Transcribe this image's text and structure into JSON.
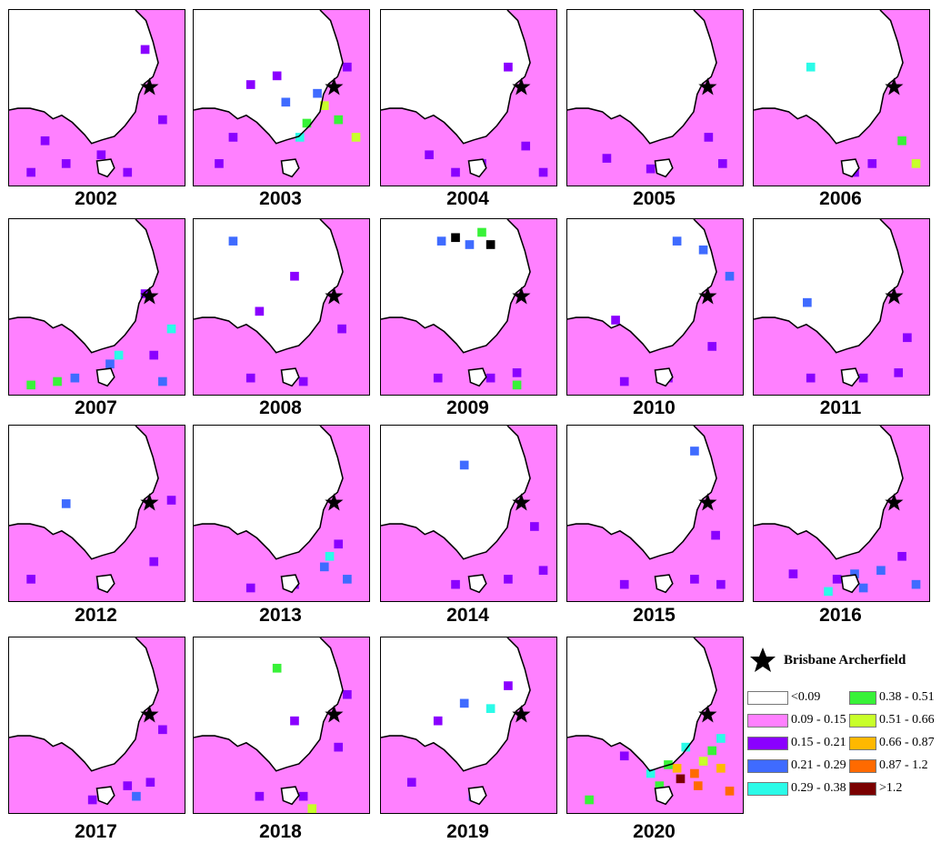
{
  "panels": [
    {
      "year": "2002",
      "dots": [
        [
          0.18,
          0.72,
          "#8a00ff"
        ],
        [
          0.3,
          0.85,
          "#8a00ff"
        ],
        [
          0.5,
          0.8,
          "#8a00ff"
        ],
        [
          0.75,
          0.2,
          "#8a00ff"
        ],
        [
          0.85,
          0.6,
          "#8a00ff"
        ],
        [
          0.65,
          0.9,
          "#8a00ff"
        ],
        [
          0.1,
          0.9,
          "#8a00ff"
        ]
      ]
    },
    {
      "year": "2003",
      "dots": [
        [
          0.62,
          0.62,
          "#38f238"
        ],
        [
          0.72,
          0.52,
          "#c8ff2a"
        ],
        [
          0.8,
          0.6,
          "#38f238"
        ],
        [
          0.58,
          0.7,
          "#2bfbe8"
        ],
        [
          0.5,
          0.5,
          "#3f6bff"
        ],
        [
          0.45,
          0.35,
          "#8a00ff"
        ],
        [
          0.3,
          0.4,
          "#8a00ff"
        ],
        [
          0.2,
          0.7,
          "#8a00ff"
        ],
        [
          0.85,
          0.3,
          "#8a00ff"
        ],
        [
          0.68,
          0.45,
          "#3f6bff"
        ],
        [
          0.9,
          0.7,
          "#c8ff2a"
        ],
        [
          0.12,
          0.85,
          "#8a00ff"
        ]
      ]
    },
    {
      "year": "2004",
      "dots": [
        [
          0.25,
          0.8,
          "#8a00ff"
        ],
        [
          0.55,
          0.85,
          "#8a00ff"
        ],
        [
          0.8,
          0.75,
          "#8a00ff"
        ],
        [
          0.7,
          0.3,
          "#8a00ff"
        ],
        [
          0.4,
          0.9,
          "#8a00ff"
        ],
        [
          0.9,
          0.9,
          "#8a00ff"
        ]
      ]
    },
    {
      "year": "2005",
      "dots": [
        [
          0.2,
          0.82,
          "#8a00ff"
        ],
        [
          0.45,
          0.88,
          "#8a00ff"
        ],
        [
          0.78,
          0.7,
          "#8a00ff"
        ],
        [
          0.86,
          0.85,
          "#8a00ff"
        ]
      ]
    },
    {
      "year": "2006",
      "dots": [
        [
          0.3,
          0.3,
          "#2bfbe8"
        ],
        [
          0.65,
          0.85,
          "#8a00ff"
        ],
        [
          0.82,
          0.72,
          "#38f238"
        ],
        [
          0.9,
          0.85,
          "#c8ff2a"
        ],
        [
          0.55,
          0.9,
          "#8a00ff"
        ]
      ]
    },
    {
      "year": "2007",
      "dots": [
        [
          0.55,
          0.8,
          "#3f6bff"
        ],
        [
          0.6,
          0.75,
          "#2bfbe8"
        ],
        [
          0.1,
          0.92,
          "#38f238"
        ],
        [
          0.25,
          0.9,
          "#38f238"
        ],
        [
          0.8,
          0.75,
          "#8a00ff"
        ],
        [
          0.75,
          0.4,
          "#8a00ff"
        ],
        [
          0.35,
          0.88,
          "#3f6bff"
        ],
        [
          0.9,
          0.6,
          "#2bfbe8"
        ],
        [
          0.85,
          0.9,
          "#3f6bff"
        ]
      ]
    },
    {
      "year": "2008",
      "dots": [
        [
          0.2,
          0.1,
          "#3f6bff"
        ],
        [
          0.55,
          0.3,
          "#8a00ff"
        ],
        [
          0.35,
          0.5,
          "#8a00ff"
        ],
        [
          0.82,
          0.6,
          "#8a00ff"
        ],
        [
          0.6,
          0.9,
          "#8a00ff"
        ],
        [
          0.3,
          0.88,
          "#8a00ff"
        ]
      ]
    },
    {
      "year": "2009",
      "dots": [
        [
          0.4,
          0.08,
          "#000000"
        ],
        [
          0.48,
          0.12,
          "#3f6bff"
        ],
        [
          0.55,
          0.05,
          "#38f238"
        ],
        [
          0.6,
          0.12,
          "#000000"
        ],
        [
          0.32,
          0.1,
          "#3f6bff"
        ],
        [
          0.75,
          0.85,
          "#8a00ff"
        ],
        [
          0.6,
          0.88,
          "#8a00ff"
        ],
        [
          0.3,
          0.88,
          "#8a00ff"
        ],
        [
          0.75,
          0.92,
          "#38f238"
        ]
      ]
    },
    {
      "year": "2010",
      "dots": [
        [
          0.6,
          0.1,
          "#3f6bff"
        ],
        [
          0.75,
          0.15,
          "#3f6bff"
        ],
        [
          0.8,
          0.7,
          "#8a00ff"
        ],
        [
          0.55,
          0.88,
          "#8a00ff"
        ],
        [
          0.3,
          0.9,
          "#8a00ff"
        ],
        [
          0.9,
          0.3,
          "#3f6bff"
        ],
        [
          0.25,
          0.55,
          "#8a00ff"
        ]
      ]
    },
    {
      "year": "2011",
      "dots": [
        [
          0.28,
          0.45,
          "#3f6bff"
        ],
        [
          0.85,
          0.65,
          "#8a00ff"
        ],
        [
          0.6,
          0.88,
          "#8a00ff"
        ],
        [
          0.3,
          0.88,
          "#8a00ff"
        ],
        [
          0.8,
          0.85,
          "#8a00ff"
        ]
      ]
    },
    {
      "year": "2012",
      "dots": [
        [
          0.3,
          0.42,
          "#3f6bff"
        ],
        [
          0.1,
          0.85,
          "#8a00ff"
        ],
        [
          0.5,
          0.88,
          "#8a00ff"
        ],
        [
          0.8,
          0.75,
          "#8a00ff"
        ],
        [
          0.9,
          0.4,
          "#8a00ff"
        ]
      ]
    },
    {
      "year": "2013",
      "dots": [
        [
          0.72,
          0.78,
          "#3f6bff"
        ],
        [
          0.75,
          0.72,
          "#2bfbe8"
        ],
        [
          0.8,
          0.65,
          "#8a00ff"
        ],
        [
          0.55,
          0.88,
          "#8a00ff"
        ],
        [
          0.3,
          0.9,
          "#8a00ff"
        ],
        [
          0.85,
          0.85,
          "#3f6bff"
        ]
      ]
    },
    {
      "year": "2014",
      "dots": [
        [
          0.45,
          0.2,
          "#3f6bff"
        ],
        [
          0.85,
          0.55,
          "#8a00ff"
        ],
        [
          0.7,
          0.85,
          "#8a00ff"
        ],
        [
          0.4,
          0.88,
          "#8a00ff"
        ],
        [
          0.9,
          0.8,
          "#8a00ff"
        ]
      ]
    },
    {
      "year": "2015",
      "dots": [
        [
          0.7,
          0.12,
          "#3f6bff"
        ],
        [
          0.82,
          0.6,
          "#8a00ff"
        ],
        [
          0.7,
          0.85,
          "#8a00ff"
        ],
        [
          0.3,
          0.88,
          "#8a00ff"
        ],
        [
          0.85,
          0.88,
          "#8a00ff"
        ]
      ]
    },
    {
      "year": "2016",
      "dots": [
        [
          0.55,
          0.82,
          "#3f6bff"
        ],
        [
          0.7,
          0.8,
          "#3f6bff"
        ],
        [
          0.6,
          0.9,
          "#3f6bff"
        ],
        [
          0.45,
          0.85,
          "#8a00ff"
        ],
        [
          0.2,
          0.82,
          "#8a00ff"
        ],
        [
          0.82,
          0.72,
          "#8a00ff"
        ],
        [
          0.9,
          0.88,
          "#3f6bff"
        ],
        [
          0.4,
          0.92,
          "#2bfbe8"
        ]
      ]
    },
    {
      "year": "2017",
      "dots": [
        [
          0.65,
          0.82,
          "#8a00ff"
        ],
        [
          0.78,
          0.8,
          "#8a00ff"
        ],
        [
          0.7,
          0.88,
          "#3f6bff"
        ],
        [
          0.45,
          0.9,
          "#8a00ff"
        ],
        [
          0.85,
          0.5,
          "#8a00ff"
        ]
      ]
    },
    {
      "year": "2018",
      "dots": [
        [
          0.45,
          0.15,
          "#38f238"
        ],
        [
          0.55,
          0.45,
          "#8a00ff"
        ],
        [
          0.8,
          0.6,
          "#8a00ff"
        ],
        [
          0.6,
          0.88,
          "#8a00ff"
        ],
        [
          0.35,
          0.88,
          "#8a00ff"
        ],
        [
          0.65,
          0.95,
          "#c8ff2a"
        ],
        [
          0.85,
          0.3,
          "#8a00ff"
        ]
      ]
    },
    {
      "year": "2019",
      "dots": [
        [
          0.45,
          0.35,
          "#3f6bff"
        ],
        [
          0.6,
          0.38,
          "#2bfbe8"
        ],
        [
          0.3,
          0.45,
          "#8a00ff"
        ],
        [
          0.7,
          0.25,
          "#8a00ff"
        ],
        [
          0.15,
          0.8,
          "#8a00ff"
        ],
        [
          0.5,
          0.88,
          "#3f6bff"
        ]
      ]
    },
    {
      "year": "2020",
      "dots": [
        [
          0.6,
          0.72,
          "#ffb800"
        ],
        [
          0.7,
          0.75,
          "#ff6a00"
        ],
        [
          0.62,
          0.78,
          "#7a0000"
        ],
        [
          0.75,
          0.68,
          "#c8ff2a"
        ],
        [
          0.8,
          0.62,
          "#38f238"
        ],
        [
          0.55,
          0.7,
          "#38f238"
        ],
        [
          0.85,
          0.72,
          "#ffb800"
        ],
        [
          0.72,
          0.82,
          "#ff6a00"
        ],
        [
          0.5,
          0.82,
          "#38f238"
        ],
        [
          0.45,
          0.75,
          "#2bfbe8"
        ],
        [
          0.85,
          0.55,
          "#2bfbe8"
        ],
        [
          0.3,
          0.65,
          "#8a00ff"
        ],
        [
          0.1,
          0.9,
          "#38f238"
        ],
        [
          0.65,
          0.6,
          "#2bfbe8"
        ],
        [
          0.9,
          0.85,
          "#ff6a00"
        ]
      ]
    }
  ],
  "legend": {
    "station_label": "Brisbane Archerfield",
    "items": [
      {
        "label": "<0.09",
        "color": "#ffffff"
      },
      {
        "label": "0.09 - 0.15",
        "color": "#ff80ff"
      },
      {
        "label": "0.15 - 0.21",
        "color": "#8a00ff"
      },
      {
        "label": "0.21 - 0.29",
        "color": "#3f6bff"
      },
      {
        "label": "0.29 - 0.38",
        "color": "#2bfbe8"
      },
      {
        "label": "0.38 - 0.51",
        "color": "#38f238"
      },
      {
        "label": "0.51 - 0.66",
        "color": "#c8ff2a"
      },
      {
        "label": "0.66 - 0.87",
        "color": "#ffb800"
      },
      {
        "label": "0.87 - 1.2",
        "color": "#ff6a00"
      },
      {
        "label": ">1.2",
        "color": "#7a0000"
      }
    ]
  }
}
